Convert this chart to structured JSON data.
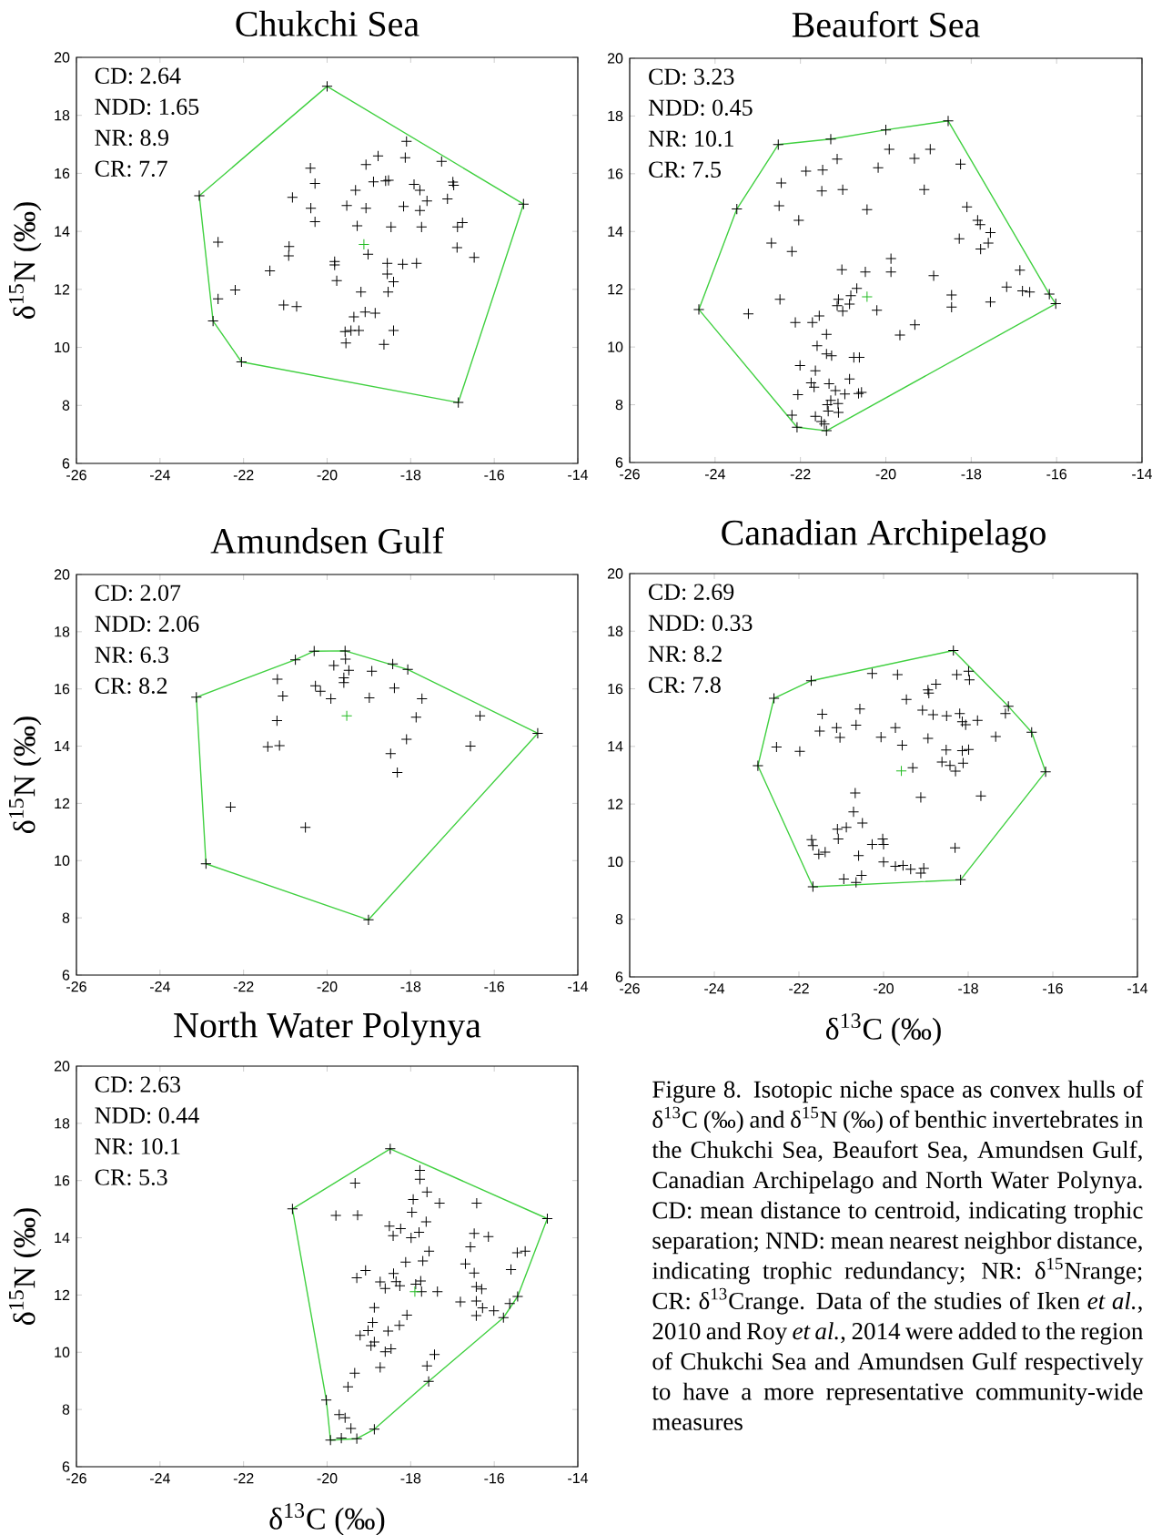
{
  "chart_data": [
    {
      "type": "scatter",
      "title": "Chukchi Sea",
      "ylabel": "δ$^{15}$N (‰)",
      "xlim": [
        -26,
        -14
      ],
      "ylim": [
        6,
        20
      ],
      "xticks": [
        -26,
        -24,
        -22,
        -20,
        -18,
        -16,
        -14
      ],
      "yticks": [
        6,
        8,
        10,
        12,
        14,
        16,
        18,
        20
      ],
      "marker": "cross",
      "annotations": [
        "CD: 2.64",
        "NDD: 1.65",
        "NR: 8.9",
        "CR: 7.7"
      ],
      "series": [
        {
          "type": "scatter",
          "color": "#000000",
          "x": [
            -20.0,
            -23.06,
            -15.3,
            -22.73,
            -22.05,
            -16.86,
            -18.1,
            -18.78,
            -18.13,
            -17.26,
            -19.07,
            -20.4,
            -20.29,
            -18.89,
            -18.6,
            -18.53,
            -17.92,
            -17.78,
            -16.99,
            -16.97,
            -19.32,
            -20.83,
            -17.61,
            -17.12,
            -20.39,
            -19.53,
            -19.07,
            -18.17,
            -17.78,
            -20.29,
            -19.28,
            -18.47,
            -17.74,
            -16.88,
            -16.76,
            -22.61,
            -20.91,
            -20.92,
            -19.02,
            -16.89,
            -16.48,
            -21.37,
            -19.82,
            -19.82,
            -18.56,
            -18.19,
            -17.86,
            -18.56,
            -18.41,
            -19.77,
            -22.2,
            -22.61,
            -19.19,
            -18.54,
            -21.04,
            -20.73,
            -19.36,
            -19.09,
            -18.85,
            -19.57,
            -19.43,
            -19.24,
            -18.41,
            -19.55,
            -18.64
          ],
          "values": [
            19.0,
            15.23,
            14.94,
            10.91,
            9.5,
            8.1,
            17.1,
            16.6,
            16.54,
            16.41,
            16.3,
            16.18,
            15.65,
            15.71,
            15.74,
            15.76,
            15.62,
            15.42,
            15.7,
            15.59,
            15.42,
            15.17,
            15.05,
            15.12,
            14.8,
            14.89,
            14.8,
            14.86,
            14.72,
            14.33,
            14.19,
            14.15,
            14.15,
            14.15,
            14.3,
            13.63,
            13.48,
            13.16,
            13.21,
            13.44,
            13.1,
            12.64,
            12.96,
            12.84,
            12.9,
            12.87,
            12.9,
            12.53,
            12.26,
            12.3,
            11.98,
            11.67,
            11.91,
            11.91,
            11.46,
            11.41,
            11.05,
            11.22,
            11.18,
            10.54,
            10.58,
            10.58,
            10.58,
            10.15,
            10.1
          ]
        },
        {
          "type": "line",
          "color": "#40d040",
          "marker": "none",
          "x": [
            -23.06,
            -20.0,
            -15.3
          ],
          "values": [
            15.23,
            19.0,
            14.94
          ]
        },
        {
          "type": "line",
          "color": "#40d040",
          "marker": "none",
          "x": [
            -23.06,
            -22.73,
            -22.05,
            -16.86,
            -15.3
          ],
          "values": [
            15.23,
            10.91,
            9.5,
            8.1,
            14.94
          ]
        },
        {
          "type": "scatter",
          "color": "#22bb22",
          "x": [
            -19.12
          ],
          "values": [
            13.55
          ]
        }
      ]
    },
    {
      "type": "scatter",
      "title": "Beaufort Sea",
      "xlim": [
        -26,
        -14
      ],
      "ylim": [
        6,
        20
      ],
      "xticks": [
        -26,
        -24,
        -22,
        -20,
        -18,
        -16,
        -14
      ],
      "yticks": [
        6,
        8,
        10,
        12,
        14,
        16,
        18,
        20
      ],
      "marker": "cross",
      "annotations": [
        "CD: 3.23",
        "NDD: 0.45",
        "NR: 10.1",
        "CR: 7.5"
      ],
      "series": [
        {
          "type": "scatter",
          "color": "#000000",
          "x": [
            -22.52,
            -21.29,
            -20.0,
            -18.54,
            -16.17,
            -16.02,
            -21.39,
            -22.08,
            -24.38,
            -23.49,
            -19.92,
            -18.96,
            -19.33,
            -21.14,
            -18.25,
            -20.18,
            -21.87,
            -21.48,
            -22.45,
            -21.5,
            -21.01,
            -19.1,
            -22.5,
            -20.44,
            -18.1,
            -22.04,
            -17.85,
            -17.79,
            -17.55,
            -18.28,
            -17.6,
            -17.78,
            -22.68,
            -22.2,
            -19.88,
            -21.03,
            -20.48,
            -19.88,
            -18.88,
            -16.86,
            -20.68,
            -20.82,
            -17.17,
            -16.8,
            -16.63,
            -18.46,
            -18.46,
            -17.55,
            -21.11,
            -20.85,
            -21.14,
            -21.01,
            -20.21,
            -22.48,
            -23.22,
            -22.12,
            -21.72,
            -21.56,
            -19.32,
            -19.67,
            -21.39,
            -21.61,
            -21.39,
            -21.27,
            -20.75,
            -20.62,
            -22.01,
            -21.65,
            -20.85,
            -21.75,
            -21.68,
            -21.33,
            -21.18,
            -20.96,
            -20.64,
            -20.57,
            -22.06,
            -21.29,
            -21.37,
            -21.12,
            -21.35,
            -21.11,
            -22.2,
            -21.65,
            -21.51,
            -21.44
          ],
          "values": [
            17.01,
            17.2,
            17.52,
            17.83,
            11.83,
            11.5,
            7.1,
            7.22,
            11.3,
            14.78,
            16.85,
            16.85,
            16.53,
            16.51,
            16.33,
            16.21,
            16.09,
            16.13,
            15.68,
            15.4,
            15.45,
            15.45,
            14.89,
            14.76,
            14.85,
            14.39,
            14.39,
            14.24,
            13.96,
            13.75,
            13.6,
            13.39,
            13.6,
            13.31,
            13.06,
            12.68,
            12.6,
            12.6,
            12.47,
            12.66,
            12.03,
            11.78,
            12.08,
            11.94,
            11.9,
            11.8,
            11.38,
            11.56,
            11.65,
            11.49,
            11.43,
            11.24,
            11.27,
            11.65,
            11.15,
            10.85,
            10.85,
            11.08,
            10.77,
            10.41,
            10.44,
            10.04,
            9.76,
            9.7,
            9.64,
            9.64,
            9.36,
            9.18,
            8.89,
            8.76,
            8.61,
            8.73,
            8.49,
            8.37,
            8.39,
            8.43,
            8.35,
            8.15,
            8.0,
            8.04,
            7.78,
            7.73,
            7.64,
            7.6,
            7.42,
            7.33
          ]
        },
        {
          "type": "line",
          "color": "#40d040",
          "marker": "none",
          "x": [
            -24.38,
            -23.49,
            -22.52,
            -21.29,
            -20.0,
            -18.54,
            -16.17,
            -16.02
          ],
          "values": [
            11.3,
            14.78,
            17.01,
            17.2,
            17.52,
            17.83,
            11.83,
            11.5
          ]
        },
        {
          "type": "line",
          "color": "#40d040",
          "marker": "none",
          "x": [
            -24.38,
            -22.08,
            -21.39,
            -16.02
          ],
          "values": [
            11.3,
            7.22,
            7.1,
            11.5
          ]
        },
        {
          "type": "scatter",
          "color": "#22bb22",
          "x": [
            -20.44
          ],
          "values": [
            11.74
          ]
        }
      ]
    },
    {
      "type": "scatter",
      "title": "Amundsen Gulf",
      "ylabel": "δ$^{15}$N (‰)",
      "xlim": [
        -26,
        -14
      ],
      "ylim": [
        6,
        20
      ],
      "xticks": [
        -26,
        -24,
        -22,
        -20,
        -18,
        -16,
        -14
      ],
      "yticks": [
        6,
        8,
        10,
        12,
        14,
        16,
        18,
        20
      ],
      "marker": "cross",
      "annotations": [
        "CD: 2.07",
        "NDD: 2.06",
        "NR: 6.3",
        "CR: 8.2"
      ],
      "series": [
        {
          "type": "scatter",
          "color": "#000000",
          "x": [
            -20.31,
            -19.57,
            -18.07,
            -14.96,
            -19.01,
            -22.9,
            -23.13,
            -20.76,
            -18.43,
            -19.84,
            -19.56,
            -19.48,
            -18.93,
            -21.19,
            -19.6,
            -19.6,
            -20.28,
            -20.16,
            -19.91,
            -21.06,
            -18.99,
            -18.39,
            -17.73,
            -21.2,
            -17.87,
            -16.34,
            -18.1,
            -21.42,
            -21.14,
            -16.57,
            -18.48,
            -18.32,
            -22.31,
            -20.52
          ],
          "values": [
            17.32,
            17.33,
            16.68,
            14.45,
            7.93,
            9.89,
            15.71,
            17.02,
            16.87,
            16.82,
            17.04,
            16.65,
            16.62,
            16.34,
            16.39,
            16.22,
            16.11,
            15.92,
            15.66,
            15.75,
            15.69,
            16.03,
            15.66,
            14.89,
            15.01,
            15.06,
            14.24,
            13.98,
            14.02,
            14.0,
            13.74,
            13.08,
            11.87,
            11.16
          ]
        },
        {
          "type": "line",
          "color": "#40d040",
          "marker": "none",
          "x": [
            -23.13,
            -20.76,
            -20.31,
            -19.57,
            -18.07,
            -14.96
          ],
          "values": [
            15.71,
            17.02,
            17.32,
            17.33,
            16.68,
            14.45
          ]
        },
        {
          "type": "line",
          "color": "#40d040",
          "marker": "none",
          "x": [
            -23.13,
            -22.9,
            -19.01,
            -14.96
          ],
          "values": [
            15.71,
            9.89,
            7.93,
            14.45
          ]
        },
        {
          "type": "scatter",
          "color": "#22bb22",
          "x": [
            -19.53
          ],
          "values": [
            15.06
          ]
        }
      ]
    },
    {
      "type": "scatter",
      "title": "Canadian Archipelago",
      "xlabel": "δ$^{13}$C (‰)",
      "xlim": [
        -26,
        -14
      ],
      "ylim": [
        6,
        20
      ],
      "xticks": [
        -26,
        -24,
        -22,
        -20,
        -18,
        -16,
        -14
      ],
      "yticks": [
        6,
        8,
        10,
        12,
        14,
        16,
        18,
        20
      ],
      "marker": "cross",
      "annotations": [
        "CD: 2.69",
        "NDD: 0.33",
        "NR: 8.2",
        "CR: 7.8"
      ],
      "series": [
        {
          "type": "scatter",
          "color": "#000000",
          "x": [
            -18.35,
            -17.05,
            -16.5,
            -16.17,
            -18.18,
            -21.67,
            -22.97,
            -22.59,
            -21.71,
            -20.27,
            -19.67,
            -18.27,
            -17.99,
            -17.97,
            -18.76,
            -18.95,
            -18.93,
            -19.46,
            -20.56,
            -19.08,
            -21.45,
            -18.83,
            -18.51,
            -18.2,
            -18.14,
            -18.06,
            -17.78,
            -17.12,
            -21.11,
            -20.65,
            -19.72,
            -21.51,
            -21.03,
            -20.06,
            -18.95,
            -17.35,
            -19.56,
            -22.53,
            -21.98,
            -18.52,
            -18.14,
            -17.99,
            -18.62,
            -18.43,
            -18.3,
            -18.12,
            -19.31,
            -20.67,
            -19.12,
            -17.7,
            -20.71,
            -20.5,
            -21.09,
            -20.88,
            -21.07,
            -21.7,
            -21.67,
            -21.53,
            -21.38,
            -20.59,
            -20.27,
            -20.02,
            -20.0,
            -18.31,
            -20.0,
            -19.72,
            -19.54,
            -19.36,
            -19.12,
            -19.05,
            -20.52,
            -20.94,
            -20.65
          ],
          "values": [
            17.33,
            15.39,
            14.49,
            13.12,
            9.37,
            9.13,
            13.33,
            15.67,
            16.28,
            16.53,
            16.49,
            16.49,
            16.61,
            16.31,
            16.16,
            15.96,
            15.85,
            15.63,
            15.3,
            15.26,
            15.12,
            15.1,
            15.06,
            15.14,
            14.86,
            14.75,
            14.9,
            15.14,
            14.65,
            14.74,
            14.65,
            14.53,
            14.31,
            14.32,
            14.28,
            14.34,
            14.04,
            13.98,
            13.83,
            13.88,
            13.85,
            13.89,
            13.46,
            13.34,
            13.14,
            13.42,
            13.26,
            12.38,
            12.23,
            12.28,
            11.73,
            11.34,
            11.13,
            11.19,
            10.79,
            10.76,
            10.56,
            10.26,
            10.33,
            10.21,
            10.6,
            10.79,
            10.6,
            10.48,
            9.99,
            9.84,
            9.87,
            9.74,
            9.6,
            9.77,
            9.52,
            9.4,
            9.28
          ]
        },
        {
          "type": "line",
          "color": "#40d040",
          "marker": "none",
          "x": [
            -22.97,
            -22.59,
            -21.71,
            -18.35,
            -17.05,
            -16.5,
            -16.17
          ],
          "values": [
            13.33,
            15.67,
            16.28,
            17.33,
            15.39,
            14.49,
            13.12
          ]
        },
        {
          "type": "line",
          "color": "#40d040",
          "marker": "none",
          "x": [
            -22.97,
            -21.67,
            -18.18,
            -16.17
          ],
          "values": [
            13.33,
            9.13,
            9.37,
            13.12
          ]
        },
        {
          "type": "scatter",
          "color": "#22bb22",
          "x": [
            -19.58
          ],
          "values": [
            13.15
          ]
        }
      ]
    },
    {
      "type": "scatter",
      "title": "North Water Polynya",
      "xlabel": "δ$^{13}$C (‰)",
      "ylabel": "δ$^{15}$N (‰)",
      "xlim": [
        -26,
        -14
      ],
      "ylim": [
        6,
        20
      ],
      "xticks": [
        -26,
        -24,
        -22,
        -20,
        -18,
        -16,
        -14
      ],
      "yticks": [
        6,
        8,
        10,
        12,
        14,
        16,
        18,
        20
      ],
      "marker": "cross",
      "annotations": [
        "CD: 2.63",
        "NDD: 0.44",
        "NR: 10.1",
        "CR: 5.3",
        "Figure 8. Isotopic niche space as convex hulls of δ$^{13}$C (‰) and δ$^{15}$N (‰) of benthic invertebrates in the Chukchi Sea, Beaufort Sea, Amundsen Gulf, Canadian Archipelago and North Water Polynya. CD: mean distance to centroid, indicating trophic separation; NND: mean nearest neighbor distance, indicating trophic redundancy; NR: δ$^{15}$Nrange; CR: δ$^{13}$Crange. Data of the studies of Iken *et al.*, 2010 and Roy *et al.*, 2014 were added to the region of Chukchi Sea and Amundsen Gulf respectively to have a more representative community-wide measures"
      ],
      "series": [
        {
          "type": "scatter",
          "color": "#000000",
          "x": [
            -18.49,
            -14.73,
            -15.44,
            -15.78,
            -17.57,
            -18.87,
            -19.29,
            -19.92,
            -20.02,
            -20.83,
            -17.78,
            -17.78,
            -19.33,
            -17.61,
            -17.94,
            -17.31,
            -16.42,
            -17.97,
            -19.79,
            -19.27,
            -17.63,
            -18.51,
            -18.24,
            -18.42,
            -17.8,
            -17.99,
            -16.48,
            -16.14,
            -16.57,
            -17.56,
            -18.12,
            -17.71,
            -16.69,
            -15.45,
            -15.26,
            -15.6,
            -16.48,
            -19.08,
            -19.29,
            -18.41,
            -18.73,
            -18.35,
            -18.61,
            -18.26,
            -17.88,
            -17.76,
            -17.74,
            -17.36,
            -16.43,
            -16.3,
            -16.81,
            -16.43,
            -16.28,
            -16.01,
            -15.63,
            -16.43,
            -18.87,
            -18.09,
            -18.91,
            -18.27,
            -19.02,
            -19.21,
            -18.54,
            -18.87,
            -18.95,
            -18.47,
            -18.61,
            -17.43,
            -17.61,
            -18.73,
            -19.34,
            -19.5,
            -19.71,
            -19.57,
            -19.43,
            -19.66
          ],
          "values": [
            17.11,
            14.67,
            11.95,
            11.21,
            8.98,
            7.31,
            6.98,
            6.93,
            8.33,
            15.01,
            16.36,
            16.05,
            15.91,
            15.6,
            15.34,
            15.21,
            15.21,
            14.89,
            14.78,
            14.79,
            14.56,
            14.41,
            14.32,
            14.07,
            14.19,
            14.0,
            14.15,
            14.04,
            13.68,
            13.53,
            13.15,
            13.19,
            13.09,
            13.48,
            13.53,
            12.89,
            12.77,
            12.86,
            12.6,
            12.75,
            12.46,
            12.47,
            12.23,
            12.32,
            12.38,
            12.49,
            12.12,
            12.12,
            12.29,
            12.21,
            11.76,
            11.79,
            11.55,
            11.45,
            11.7,
            11.28,
            11.56,
            11.3,
            11.04,
            10.94,
            10.76,
            10.59,
            10.74,
            10.36,
            10.23,
            10.12,
            10.02,
            9.92,
            9.52,
            9.47,
            9.27,
            8.79,
            7.82,
            7.71,
            7.34,
            7.0
          ]
        },
        {
          "type": "line",
          "color": "#40d040",
          "marker": "none",
          "x": [
            -20.83,
            -18.49,
            -14.73
          ],
          "values": [
            15.01,
            17.11,
            14.67
          ]
        },
        {
          "type": "line",
          "color": "#40d040",
          "marker": "none",
          "x": [
            -20.83,
            -20.02,
            -19.92,
            -19.29,
            -18.87,
            -17.57,
            -15.78,
            -15.44,
            -14.73
          ],
          "values": [
            15.01,
            8.33,
            6.93,
            6.98,
            7.31,
            8.98,
            11.21,
            11.95,
            14.67
          ]
        },
        {
          "type": "scatter",
          "color": "#22bb22",
          "x": [
            -17.9
          ],
          "values": [
            12.12
          ]
        }
      ]
    }
  ]
}
